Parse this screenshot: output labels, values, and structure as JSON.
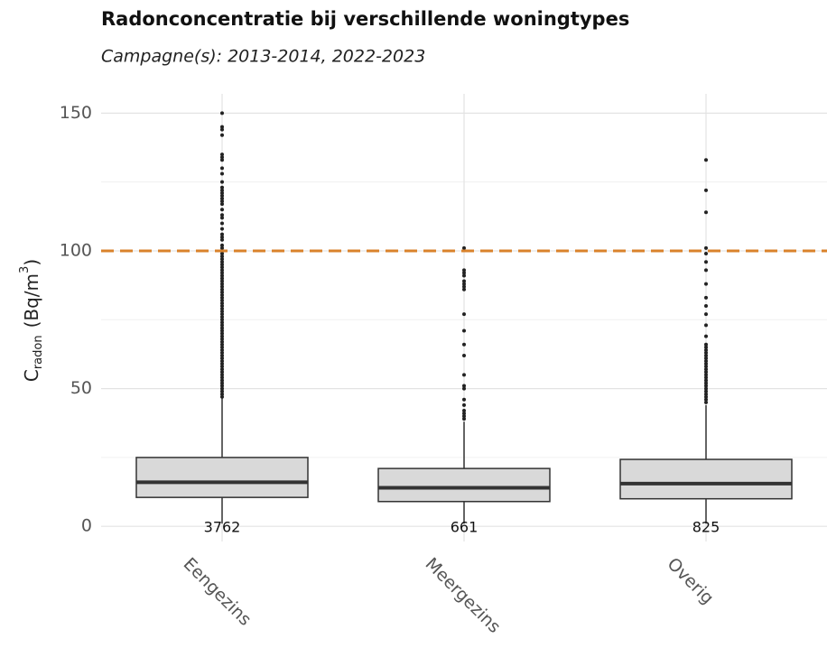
{
  "chart_data": {
    "type": "boxplot",
    "title": "Radonconcentratie bij verschillende woningtypes",
    "subtitle": "Campagne(s): 2013-2014, 2022-2023",
    "ylabel": {
      "symbol": "C",
      "subscript": "radon",
      "unit": "(Bq/m",
      "superscript": "3",
      "close": ")"
    },
    "categories": [
      "Eengezins",
      "Meergezins",
      "Overig"
    ],
    "count_labels": [
      "3762",
      "661",
      "825"
    ],
    "boxes": [
      {
        "whisker_low": 1,
        "q1": 10.5,
        "median": 16,
        "q3": 25,
        "whisker_high": 47,
        "outliers": [
          47,
          48,
          49,
          50,
          51,
          52,
          53,
          54,
          55,
          56,
          57,
          58,
          59,
          60,
          61,
          62,
          63,
          64,
          65,
          66,
          67,
          68,
          69,
          70,
          71,
          72,
          73,
          74,
          75,
          76,
          77,
          78,
          79,
          80,
          81,
          82,
          83,
          84,
          85,
          86,
          87,
          88,
          89,
          90,
          91,
          92,
          93,
          94,
          95,
          96,
          97,
          98,
          99,
          100,
          101,
          102,
          104,
          105,
          106,
          108,
          110,
          112,
          113,
          115,
          117,
          118,
          119,
          120,
          121,
          122,
          123,
          125,
          128,
          130,
          133,
          134,
          135,
          142,
          144,
          145,
          150
        ]
      },
      {
        "whisker_low": 1,
        "q1": 9,
        "median": 14,
        "q3": 21,
        "whisker_high": 38,
        "outliers": [
          39,
          40,
          41,
          42,
          44,
          46,
          50,
          51,
          55,
          62,
          66,
          71,
          77,
          86,
          87,
          88,
          89,
          91,
          92,
          93,
          101
        ]
      },
      {
        "whisker_low": 1,
        "q1": 10,
        "median": 15.5,
        "q3": 24.3,
        "whisker_high": 44,
        "outliers": [
          45,
          46,
          47,
          48,
          49,
          50,
          51,
          52,
          53,
          54,
          55,
          56,
          57,
          58,
          59,
          60,
          61,
          62,
          63,
          64,
          65,
          66,
          69,
          73,
          77,
          80,
          83,
          88,
          93,
          96,
          99,
          101,
          114,
          122,
          133
        ]
      }
    ],
    "box_color": "#d9d9d9",
    "reference_line": {
      "value": 100,
      "color": "#d9822b",
      "dashed": true
    },
    "ylim": [
      -5.5,
      157
    ],
    "yticks": [
      0,
      50,
      100,
      150
    ],
    "minor_yticks": [
      25,
      75,
      125
    ],
    "grid": true
  }
}
